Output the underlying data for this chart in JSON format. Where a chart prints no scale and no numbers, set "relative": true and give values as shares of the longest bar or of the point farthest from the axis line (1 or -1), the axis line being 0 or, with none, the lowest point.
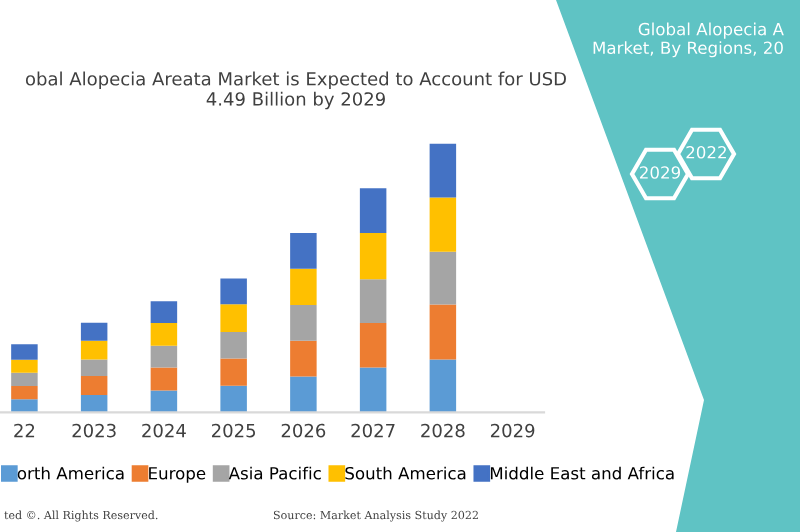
{
  "chart_data": {
    "type": "bar",
    "stacked": true,
    "relative": true,
    "title": "obal Alopecia Areata Market is Expected to Account for USD\n4.49 Billion by 2029",
    "categories": [
      "22",
      "2023",
      "2024",
      "2025",
      "2026",
      "2027",
      "2028",
      "2029"
    ],
    "series": [
      {
        "name": "orth America",
        "color": "#5b9bd5",
        "values": [
          0.049,
          0.064,
          0.081,
          0.099,
          0.133,
          0.167,
          0.197,
          null
        ]
      },
      {
        "name": "Europe",
        "color": "#ed7d31",
        "values": [
          0.049,
          0.071,
          0.086,
          0.101,
          0.133,
          0.165,
          0.204,
          null
        ]
      },
      {
        "name": "Asia Pacific",
        "color": "#a5a5a5",
        "values": [
          0.049,
          0.062,
          0.081,
          0.099,
          0.133,
          0.163,
          0.197,
          null
        ]
      },
      {
        "name": "South America",
        "color": "#ffc000",
        "values": [
          0.049,
          0.069,
          0.084,
          0.103,
          0.135,
          0.172,
          0.202,
          null
        ]
      },
      {
        "name": "Middle East and Africa",
        "color": "#4472c4",
        "values": [
          0.057,
          0.067,
          0.081,
          0.096,
          0.133,
          0.167,
          0.2,
          null
        ]
      }
    ],
    "legend": "bottom",
    "grid": false,
    "annotations": [
      "ted ©. All Rights Reserved.",
      "Source: Market Analysis Study 2022",
      "Global Alopecia A\nMarket, By Regions, 20",
      "2029",
      "2022"
    ]
  }
}
